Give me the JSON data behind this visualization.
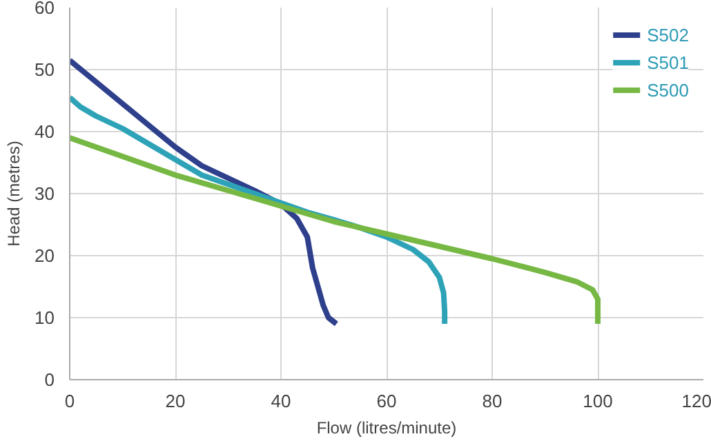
{
  "chart_data": {
    "type": "line",
    "xlabel": "Flow (litres/minute)",
    "ylabel": "Head (metres)",
    "xlim": [
      0,
      120
    ],
    "ylim": [
      0,
      60
    ],
    "xticks": [
      0,
      20,
      40,
      60,
      80,
      100,
      120
    ],
    "yticks": [
      0,
      10,
      20,
      30,
      40,
      50,
      60
    ],
    "grid": true,
    "legend": "top right",
    "marker": "none",
    "line_style": "solid",
    "series": [
      {
        "name": "S502",
        "color": "#2e3f8c",
        "x": [
          0,
          5,
          10,
          15,
          20,
          25,
          30,
          35,
          40,
          43,
          45,
          46,
          47,
          48,
          49,
          50.5
        ],
        "values": [
          51.5,
          48,
          44.5,
          41,
          37.5,
          34.5,
          32.5,
          30.5,
          28.3,
          26,
          23,
          18,
          15,
          12,
          10,
          9
        ]
      },
      {
        "name": "S501",
        "color": "#2ea3b8",
        "x": [
          0,
          2,
          5,
          10,
          15,
          20,
          25,
          30,
          35,
          40,
          45,
          50,
          55,
          60,
          65,
          68,
          70,
          70.8,
          71,
          71
        ],
        "values": [
          45.5,
          44,
          42.5,
          40.5,
          38,
          35.5,
          33,
          31.5,
          30,
          28.5,
          27,
          25.8,
          24.5,
          23,
          21,
          19,
          16.5,
          14,
          11,
          9
        ]
      },
      {
        "name": "S500",
        "color": "#76b843",
        "x": [
          0,
          10,
          20,
          30,
          40,
          50,
          60,
          70,
          80,
          90,
          96,
          99,
          100,
          100
        ],
        "values": [
          39,
          36,
          33,
          30.5,
          28,
          25.5,
          23.5,
          21.5,
          19.5,
          17.3,
          15.8,
          14.5,
          13,
          9
        ]
      }
    ]
  }
}
